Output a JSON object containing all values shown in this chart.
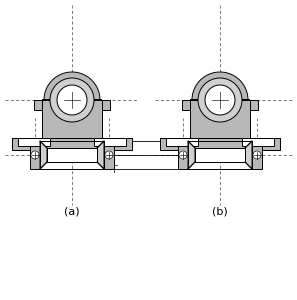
{
  "bg_color": "#ffffff",
  "gray": "#b8b8b8",
  "gray_light": "#d0d0d0",
  "gray_dark": "#909090",
  "white": "#ffffff",
  "black": "#000000",
  "label_a": "(a)",
  "label_b": "(b)",
  "label_fontsize": 8,
  "lw": 0.7,
  "lw_thin": 0.45,
  "dash": [
    3,
    2
  ]
}
